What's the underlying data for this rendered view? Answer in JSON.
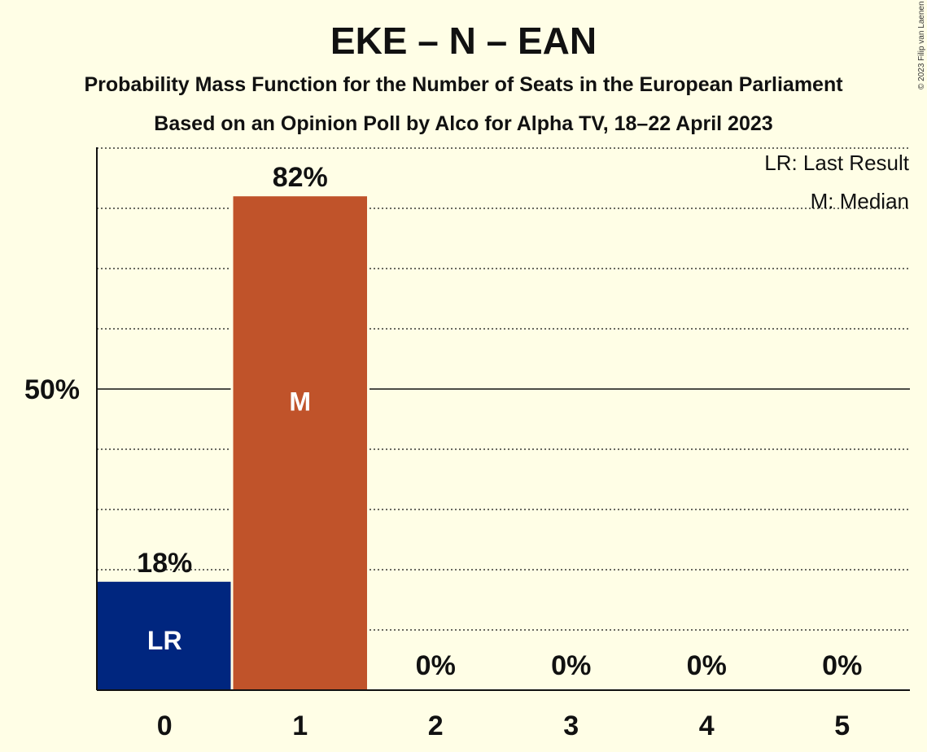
{
  "title": "EKE – N – EAN",
  "subtitle_1": "Probability Mass Function for the Number of Seats in the European Parliament",
  "subtitle_2": "Based on an Opinion Poll by Alco for Alpha TV, 18–22 April 2023",
  "copyright": "© 2023 Filip van Laenen",
  "legend": {
    "last_result": "LR: Last Result",
    "median": "M: Median"
  },
  "colors": {
    "background": "#FFFEE6",
    "last_result_bar": "#00267F",
    "median_bar": "#C0532A",
    "axis": "#111111"
  },
  "chart_data": {
    "type": "bar",
    "categories": [
      "0",
      "1",
      "2",
      "3",
      "4",
      "5"
    ],
    "values": [
      18,
      82,
      0,
      0,
      0,
      0
    ],
    "value_labels": [
      "18%",
      "82%",
      "0%",
      "0%",
      "0%",
      "0%"
    ],
    "bar_markers": [
      "LR",
      "M",
      "",
      "",
      "",
      ""
    ],
    "ylim": [
      0,
      90
    ],
    "ytick_labels": [
      {
        "value": 50,
        "label": "50%"
      }
    ],
    "grid": "dotted every 10%, solid at 50%",
    "legend_placement": "top-right"
  }
}
